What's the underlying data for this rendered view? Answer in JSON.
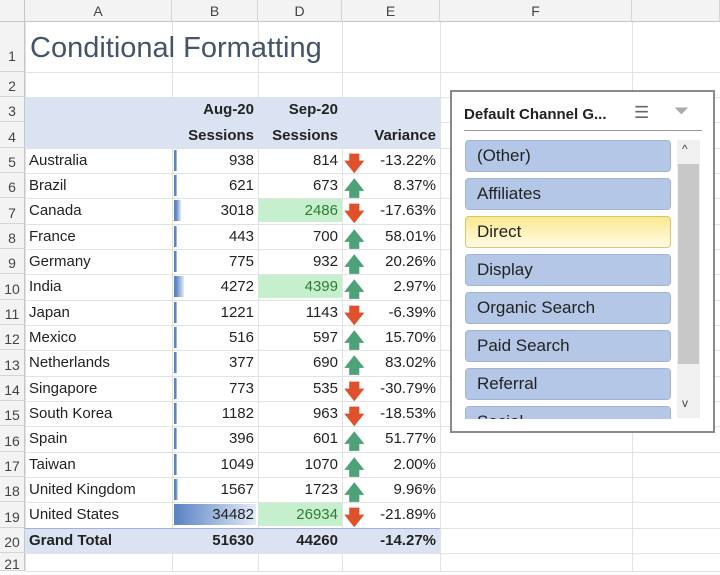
{
  "columns": [
    "A",
    "B",
    "D",
    "E",
    "F"
  ],
  "title": "Conditional Formatting",
  "header": {
    "row3": {
      "b": "Aug-20",
      "d": "Sep-20"
    },
    "row4": {
      "b": "Sessions",
      "d": "Sessions",
      "e": "Variance"
    }
  },
  "rows": [
    {
      "country": "Australia",
      "aug": 938,
      "sep": 814,
      "variance": "-13.22%",
      "trend": "down",
      "highlight": false
    },
    {
      "country": "Brazil",
      "aug": 621,
      "sep": 673,
      "variance": "8.37%",
      "trend": "up",
      "highlight": false
    },
    {
      "country": "Canada",
      "aug": 3018,
      "sep": 2486,
      "variance": "-17.63%",
      "trend": "down",
      "highlight": true
    },
    {
      "country": "France",
      "aug": 443,
      "sep": 700,
      "variance": "58.01%",
      "trend": "up",
      "highlight": false
    },
    {
      "country": "Germany",
      "aug": 775,
      "sep": 932,
      "variance": "20.26%",
      "trend": "up",
      "highlight": false
    },
    {
      "country": "India",
      "aug": 4272,
      "sep": 4399,
      "variance": "2.97%",
      "trend": "up",
      "highlight": true
    },
    {
      "country": "Japan",
      "aug": 1221,
      "sep": 1143,
      "variance": "-6.39%",
      "trend": "down",
      "highlight": false
    },
    {
      "country": "Mexico",
      "aug": 516,
      "sep": 597,
      "variance": "15.70%",
      "trend": "up",
      "highlight": false
    },
    {
      "country": "Netherlands",
      "aug": 377,
      "sep": 690,
      "variance": "83.02%",
      "trend": "up",
      "highlight": false
    },
    {
      "country": "Singapore",
      "aug": 773,
      "sep": 535,
      "variance": "-30.79%",
      "trend": "down",
      "highlight": false
    },
    {
      "country": "South Korea",
      "aug": 1182,
      "sep": 963,
      "variance": "-18.53%",
      "trend": "down",
      "highlight": false
    },
    {
      "country": "Spain",
      "aug": 396,
      "sep": 601,
      "variance": "51.77%",
      "trend": "up",
      "highlight": false
    },
    {
      "country": "Taiwan",
      "aug": 1049,
      "sep": 1070,
      "variance": "2.00%",
      "trend": "up",
      "highlight": false
    },
    {
      "country": "United Kingdom",
      "aug": 1567,
      "sep": 1723,
      "variance": "9.96%",
      "trend": "up",
      "highlight": false
    },
    {
      "country": "United States",
      "aug": 34482,
      "sep": 26934,
      "variance": "-21.89%",
      "trend": "down",
      "highlight": true
    }
  ],
  "total": {
    "label": "Grand Total",
    "aug": "51630",
    "sep": "44260",
    "variance": "-14.27%"
  },
  "slicer": {
    "title": "Default Channel G...",
    "items": [
      "(Other)",
      "Affiliates",
      "Direct",
      "Display",
      "Organic Search",
      "Paid Search",
      "Referral",
      "Social"
    ],
    "selected": "Direct",
    "icons": [
      "multi-select-icon",
      "clear-filter-icon"
    ]
  },
  "colors": {
    "up": "#4ea27a",
    "down": "#e0502a",
    "highlight": "#c6efce",
    "highlight_text": "#2e7d32",
    "band": "#dbe3f3",
    "selected": "#fbe88e",
    "databar": "#5b84c4"
  }
}
